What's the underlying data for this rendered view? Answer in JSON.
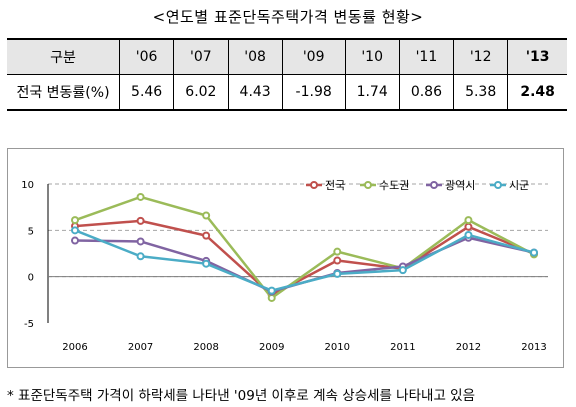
{
  "title": "<연도별 표준단독주택가격 변동률 현황>",
  "table": {
    "header_label": "구분",
    "row_label": "전국 변동률(%)",
    "years": [
      "'06",
      "'07",
      "'08",
      "'09",
      "'10",
      "'11",
      "'12",
      "'13"
    ],
    "values": [
      "5.46",
      "6.02",
      "4.43",
      "-1.98",
      "1.74",
      "0.86",
      "5.38",
      "2.48"
    ]
  },
  "chart_data": {
    "type": "line",
    "categories": [
      "2006",
      "2007",
      "2008",
      "2009",
      "2010",
      "2011",
      "2012",
      "2013"
    ],
    "yticks": [
      "10",
      "5",
      "0",
      "-5"
    ],
    "ylim": [
      -5,
      10
    ],
    "grid": "horizontal dashed",
    "legend_position": "top-right",
    "series": [
      {
        "name": "전국",
        "color": "#c0504d",
        "values": [
          5.46,
          6.02,
          4.43,
          -1.98,
          1.74,
          0.86,
          5.38,
          2.48
        ]
      },
      {
        "name": "수도권",
        "color": "#9bbb59",
        "values": [
          6.1,
          8.6,
          6.6,
          -2.3,
          2.7,
          0.9,
          6.1,
          2.4
        ]
      },
      {
        "name": "광역시",
        "color": "#8064a2",
        "values": [
          3.9,
          3.8,
          1.7,
          -1.6,
          0.4,
          1.1,
          4.2,
          2.6
        ]
      },
      {
        "name": "시군",
        "color": "#4bacc6",
        "values": [
          5.0,
          2.2,
          1.4,
          -1.5,
          0.3,
          0.7,
          4.5,
          2.6
        ]
      }
    ]
  },
  "footnote": "* 표준단독주택 가격이 하락세를 나타낸 '09년 이후로 계속 상승세를 나타내고 있음"
}
